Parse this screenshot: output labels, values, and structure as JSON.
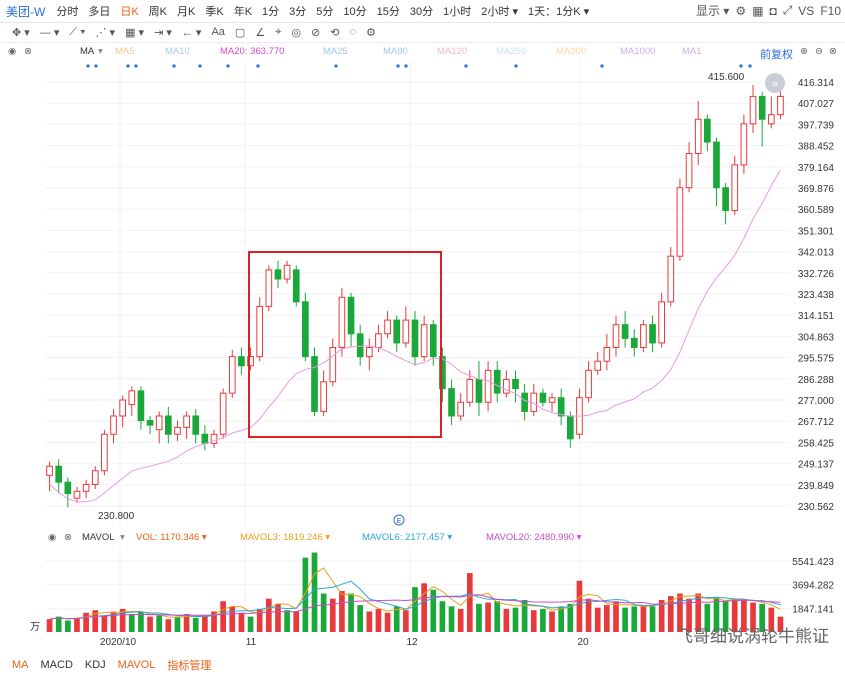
{
  "toolbar": {
    "symbol": "美团-W",
    "periods": [
      "分时",
      "多日",
      "日K",
      "周K",
      "月K",
      "季K",
      "年K",
      "1分",
      "3分",
      "5分",
      "10分",
      "15分",
      "30分",
      "1小时",
      "2小时 ▾",
      "1天：1分K ▾"
    ],
    "active_period": "日K",
    "display_label": "显示 ▾",
    "vs_label": "VS",
    "f10_label": "F10"
  },
  "tools": [
    "✥ ▾",
    "— ▾",
    "⟋ ▾",
    "⋰ ▾",
    "▦ ▾",
    "⇥ ▾",
    "← ▾",
    "Aa",
    "▢",
    "∠",
    "⌖",
    "◎",
    "⊘",
    "⟲",
    "◌",
    "⚙"
  ],
  "ma_bar": {
    "label": "MA",
    "items": [
      {
        "text": "MA5",
        "color": "#f4c890"
      },
      {
        "text": "MA10",
        "color": "#a8cde8"
      },
      {
        "text": "MA20: 363.770",
        "color": "#d24ec6"
      },
      {
        "text": "MA25",
        "color": "#9ec9e8"
      },
      {
        "text": "MA90",
        "color": "#9ec9e8"
      },
      {
        "text": "MA120",
        "color": "#f2b8c6"
      },
      {
        "text": "MA250",
        "color": "#c9e3f5"
      },
      {
        "text": "MA300",
        "color": "#f8d8a8"
      },
      {
        "text": "MA1000",
        "color": "#c5b3e8"
      },
      {
        "text": "MA1",
        "color": "#c6b3d8"
      }
    ],
    "adjust_label": "前复权"
  },
  "price_axis": [
    "416.314",
    "407.027",
    "397.739",
    "388.452",
    "379.164",
    "369.876",
    "360.589",
    "351.301",
    "342.013",
    "332.726",
    "323.438",
    "314.151",
    "304.863",
    "295.575",
    "286.288",
    "277.000",
    "267.712",
    "258.425",
    "249.137",
    "239.849",
    "230.562"
  ],
  "annotations": {
    "high": "415.600",
    "low": "230.800"
  },
  "vol_bar": {
    "label": "MAVOL",
    "items": [
      {
        "text": "VOL: 1170.346",
        "color": "#e8611a"
      },
      {
        "text": "MAVOL3: 1819.246",
        "color": "#e8a11a"
      },
      {
        "text": "MAVOL6: 2177.457",
        "color": "#2aa7d6"
      },
      {
        "text": "MAVOL20: 2480.990",
        "color": "#c74ec6"
      }
    ]
  },
  "vol_axis": [
    "5541.423",
    "3694.282",
    "1847.141"
  ],
  "vol_unit": "万",
  "x_labels": [
    "2020/10",
    "11",
    "12",
    "20"
  ],
  "bottom_tabs": [
    "MA",
    "MACD",
    "KDJ",
    "MAVOL",
    "指标管理"
  ],
  "watermark": "飞哥细说涡轮牛熊证",
  "watermark_sub": "@ 飞哥细说涡轮牛熊证",
  "colors": {
    "up": "#e83a3a",
    "down": "#1aa83a",
    "ma20": "#e89ae0",
    "highlight": "#e02020"
  },
  "chart_data": {
    "type": "candlestick",
    "ylim": [
      230.562,
      416.314
    ],
    "candles": [
      [
        244,
        248,
        237,
        250
      ],
      [
        248,
        241,
        236,
        251
      ],
      [
        241,
        236,
        230,
        243
      ],
      [
        234,
        237,
        232,
        239
      ],
      [
        237,
        240,
        234,
        242
      ],
      [
        240,
        246,
        238,
        248
      ],
      [
        246,
        262,
        244,
        264
      ],
      [
        262,
        270,
        258,
        273
      ],
      [
        270,
        277,
        265,
        279
      ],
      [
        275,
        281,
        270,
        283
      ],
      [
        281,
        268,
        264,
        283
      ],
      [
        268,
        266,
        262,
        270
      ],
      [
        264,
        270,
        258,
        272
      ],
      [
        270,
        262,
        258,
        274
      ],
      [
        262,
        265,
        259,
        268
      ],
      [
        265,
        270,
        260,
        272
      ],
      [
        270,
        262,
        258,
        273
      ],
      [
        262,
        258,
        255,
        266
      ],
      [
        258,
        262,
        256,
        264
      ],
      [
        262,
        280,
        260,
        282
      ],
      [
        280,
        296,
        278,
        299
      ],
      [
        296,
        292,
        288,
        300
      ],
      [
        292,
        296,
        290,
        300
      ],
      [
        296,
        318,
        294,
        322
      ],
      [
        318,
        334,
        316,
        336
      ],
      [
        334,
        330,
        326,
        338
      ],
      [
        330,
        336,
        328,
        338
      ],
      [
        334,
        320,
        318,
        336
      ],
      [
        320,
        296,
        294,
        324
      ],
      [
        296,
        272,
        270,
        300
      ],
      [
        272,
        285,
        270,
        290
      ],
      [
        285,
        300,
        283,
        304
      ],
      [
        300,
        322,
        296,
        326
      ],
      [
        322,
        306,
        300,
        324
      ],
      [
        306,
        296,
        292,
        310
      ],
      [
        296,
        300,
        290,
        304
      ],
      [
        300,
        306,
        298,
        310
      ],
      [
        306,
        312,
        304,
        316
      ],
      [
        312,
        302,
        298,
        314
      ],
      [
        302,
        312,
        300,
        318
      ],
      [
        312,
        296,
        292,
        316
      ],
      [
        296,
        310,
        294,
        314
      ],
      [
        310,
        296,
        292,
        312
      ],
      [
        296,
        282,
        276,
        300
      ],
      [
        282,
        270,
        266,
        286
      ],
      [
        270,
        276,
        268,
        280
      ],
      [
        276,
        286,
        274,
        290
      ],
      [
        286,
        276,
        270,
        294
      ],
      [
        276,
        290,
        272,
        294
      ],
      [
        290,
        280,
        276,
        294
      ],
      [
        280,
        286,
        278,
        290
      ],
      [
        286,
        282,
        276,
        290
      ],
      [
        280,
        272,
        268,
        284
      ],
      [
        272,
        280,
        270,
        284
      ],
      [
        280,
        276,
        274,
        282
      ],
      [
        276,
        278,
        272,
        280
      ],
      [
        278,
        270,
        266,
        282
      ],
      [
        270,
        260,
        256,
        272
      ],
      [
        262,
        278,
        260,
        282
      ],
      [
        278,
        290,
        276,
        294
      ],
      [
        290,
        294,
        288,
        298
      ],
      [
        294,
        300,
        290,
        306
      ],
      [
        300,
        310,
        296,
        314
      ],
      [
        310,
        304,
        300,
        316
      ],
      [
        304,
        300,
        296,
        308
      ],
      [
        300,
        310,
        298,
        312
      ],
      [
        310,
        302,
        298,
        314
      ],
      [
        302,
        320,
        300,
        324
      ],
      [
        320,
        340,
        318,
        344
      ],
      [
        340,
        370,
        338,
        374
      ],
      [
        370,
        385,
        368,
        390
      ],
      [
        385,
        400,
        380,
        408
      ],
      [
        400,
        390,
        386,
        402
      ],
      [
        390,
        370,
        362,
        392
      ],
      [
        370,
        360,
        354,
        372
      ],
      [
        360,
        380,
        358,
        384
      ],
      [
        380,
        398,
        376,
        402
      ],
      [
        398,
        410,
        394,
        415
      ],
      [
        410,
        400,
        388,
        412
      ],
      [
        398,
        402,
        396,
        410
      ],
      [
        402,
        410,
        400,
        416
      ]
    ],
    "volume": [
      [
        1000,
        "u"
      ],
      [
        1200,
        "d"
      ],
      [
        900,
        "d"
      ],
      [
        1100,
        "u"
      ],
      [
        1500,
        "u"
      ],
      [
        1700,
        "u"
      ],
      [
        1300,
        "u"
      ],
      [
        1600,
        "u"
      ],
      [
        1800,
        "u"
      ],
      [
        1400,
        "d"
      ],
      [
        1600,
        "d"
      ],
      [
        1200,
        "u"
      ],
      [
        1300,
        "d"
      ],
      [
        1000,
        "u"
      ],
      [
        1200,
        "d"
      ],
      [
        1400,
        "u"
      ],
      [
        1100,
        "d"
      ],
      [
        1300,
        "u"
      ],
      [
        1600,
        "u"
      ],
      [
        2400,
        "u"
      ],
      [
        2000,
        "u"
      ],
      [
        1500,
        "u"
      ],
      [
        1200,
        "d"
      ],
      [
        1800,
        "u"
      ],
      [
        2600,
        "u"
      ],
      [
        2200,
        "u"
      ],
      [
        1700,
        "d"
      ],
      [
        1600,
        "u"
      ],
      [
        5800,
        "d"
      ],
      [
        6200,
        "d"
      ],
      [
        3000,
        "d"
      ],
      [
        2600,
        "u"
      ],
      [
        3200,
        "u"
      ],
      [
        3000,
        "d"
      ],
      [
        2100,
        "d"
      ],
      [
        1600,
        "u"
      ],
      [
        1800,
        "u"
      ],
      [
        1500,
        "u"
      ],
      [
        2000,
        "d"
      ],
      [
        1700,
        "u"
      ],
      [
        3500,
        "d"
      ],
      [
        3800,
        "u"
      ],
      [
        3300,
        "d"
      ],
      [
        2400,
        "d"
      ],
      [
        2000,
        "d"
      ],
      [
        1800,
        "u"
      ],
      [
        4600,
        "u"
      ],
      [
        2200,
        "d"
      ],
      [
        2300,
        "u"
      ],
      [
        2400,
        "d"
      ],
      [
        1800,
        "u"
      ],
      [
        1900,
        "d"
      ],
      [
        2500,
        "d"
      ],
      [
        1700,
        "u"
      ],
      [
        1800,
        "d"
      ],
      [
        1600,
        "u"
      ],
      [
        2000,
        "d"
      ],
      [
        2200,
        "d"
      ],
      [
        4000,
        "u"
      ],
      [
        2600,
        "u"
      ],
      [
        1900,
        "u"
      ],
      [
        2100,
        "u"
      ],
      [
        2400,
        "u"
      ],
      [
        1900,
        "d"
      ],
      [
        2000,
        "d"
      ],
      [
        2100,
        "u"
      ],
      [
        2000,
        "d"
      ],
      [
        2500,
        "u"
      ],
      [
        2800,
        "u"
      ],
      [
        3000,
        "u"
      ],
      [
        2600,
        "u"
      ],
      [
        3000,
        "u"
      ],
      [
        2200,
        "d"
      ],
      [
        2700,
        "d"
      ],
      [
        2400,
        "d"
      ],
      [
        2600,
        "u"
      ],
      [
        2500,
        "u"
      ],
      [
        2300,
        "u"
      ],
      [
        2200,
        "d"
      ],
      [
        1900,
        "u"
      ],
      [
        1200,
        "u"
      ]
    ]
  }
}
